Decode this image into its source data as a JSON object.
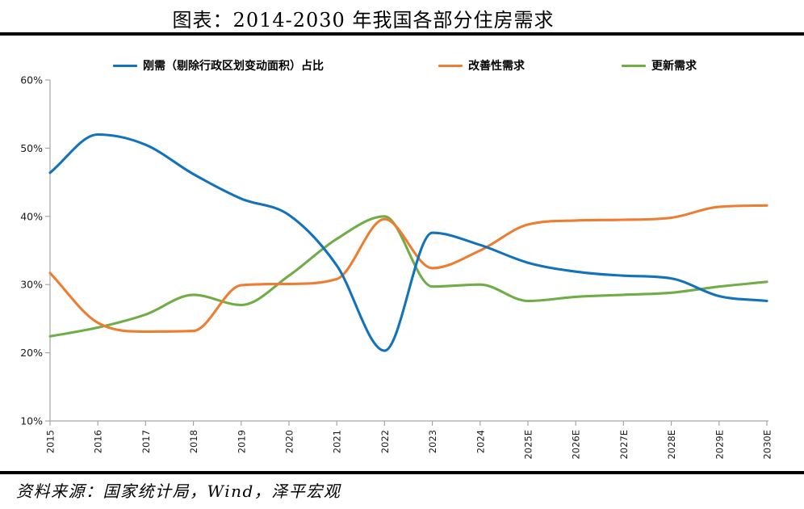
{
  "page": {
    "title": "图表：2014-2030 年我国各部分住房需求",
    "source_note": "资料来源：国家统计局，Wind，泽平宏观"
  },
  "colors": {
    "blue": "#1272BC",
    "orange": "#ED7D31",
    "green": "#70AD47",
    "axis": "#A6A6A6",
    "tick_label": "#1A1A1A",
    "rule": "#000000"
  },
  "chart_data": {
    "type": "line",
    "title": "图表：2014-2030 年我国各部分住房需求",
    "categories": [
      "2015",
      "2016",
      "2017",
      "2018",
      "2019",
      "2020",
      "2021",
      "2022",
      "2023",
      "2024",
      "2025E",
      "2026E",
      "2027E",
      "2028E",
      "2029E",
      "2030E"
    ],
    "series": [
      {
        "name": "刚需（剔除行政区划变动面积）占比",
        "color_key": "blue",
        "values": [
          46.4,
          52.0,
          50.5,
          46.2,
          42.6,
          40.2,
          32.8,
          20.3,
          37.6,
          35.8,
          33.2,
          31.9,
          31.3,
          30.9,
          28.3,
          27.6
        ]
      },
      {
        "name": "改善性需求",
        "color_key": "orange",
        "values": [
          31.7,
          24.4,
          23.1,
          23.2,
          29.9,
          30.1,
          30.8,
          39.6,
          32.4,
          35.0,
          38.8,
          39.4,
          39.5,
          39.8,
          41.4,
          41.6
        ]
      },
      {
        "name": "更新需求",
        "color_key": "green",
        "values": [
          22.4,
          23.7,
          25.6,
          28.5,
          27.0,
          31.3,
          36.7,
          40.0,
          29.7,
          30.0,
          27.6,
          28.2,
          28.5,
          28.8,
          29.7,
          30.4
        ]
      }
    ],
    "xlabel": "",
    "ylabel": "",
    "ylim": [
      10,
      60
    ],
    "ytick_step": 10,
    "ytick_format": "percent",
    "grid": false,
    "legend_position": "top",
    "x_label_rotation": -90,
    "draw_order_top_to_bottom": [
      "blue",
      "orange",
      "green"
    ]
  }
}
